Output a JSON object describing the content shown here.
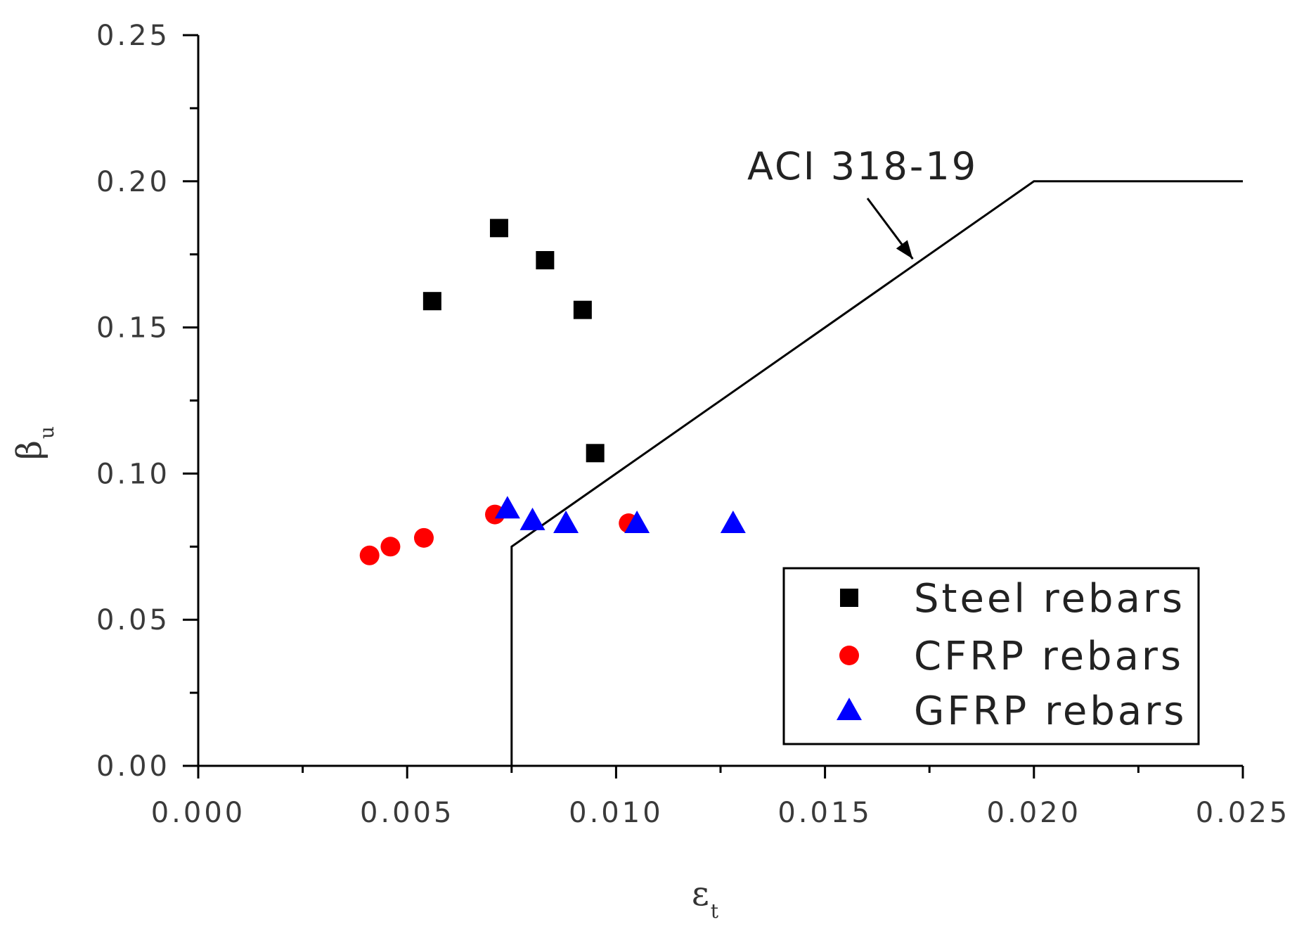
{
  "chart_data": {
    "type": "scatter",
    "title": "",
    "xlabel": "ε",
    "xlabel_sub": "t",
    "ylabel": "β",
    "ylabel_sub": "u",
    "xlim": [
      0,
      0.025
    ],
    "ylim": [
      0,
      0.25
    ],
    "x_ticks": [
      {
        "value": 0.0,
        "label": "0.000"
      },
      {
        "value": 0.005,
        "label": "0.005"
      },
      {
        "value": 0.01,
        "label": "0.010"
      },
      {
        "value": 0.015,
        "label": "0.015"
      },
      {
        "value": 0.02,
        "label": "0.020"
      },
      {
        "value": 0.025,
        "label": "0.025"
      }
    ],
    "y_ticks": [
      {
        "value": 0.0,
        "label": "0.00"
      },
      {
        "value": 0.05,
        "label": "0.05"
      },
      {
        "value": 0.1,
        "label": "0.10"
      },
      {
        "value": 0.15,
        "label": "0.15"
      },
      {
        "value": 0.2,
        "label": "0.20"
      },
      {
        "value": 0.25,
        "label": "0.25"
      }
    ],
    "x_minor_step": 0.0025,
    "y_minor_step": 0.025,
    "grid": false,
    "legend_position": "bottom-right",
    "series": [
      {
        "name": "Steel rebars",
        "marker": "square",
        "color": "#000000",
        "points": [
          [
            0.0056,
            0.159
          ],
          [
            0.0072,
            0.184
          ],
          [
            0.0083,
            0.173
          ],
          [
            0.0092,
            0.156
          ],
          [
            0.0095,
            0.107
          ]
        ]
      },
      {
        "name": "CFRP rebars",
        "marker": "circle",
        "color": "#ff0000",
        "points": [
          [
            0.0041,
            0.072
          ],
          [
            0.0046,
            0.075
          ],
          [
            0.0054,
            0.078
          ],
          [
            0.0071,
            0.086
          ],
          [
            0.0103,
            0.083
          ]
        ]
      },
      {
        "name": "GFRP rebars",
        "marker": "triangle",
        "color": "#0000ff",
        "points": [
          [
            0.0074,
            0.088
          ],
          [
            0.008,
            0.084
          ],
          [
            0.0088,
            0.083
          ],
          [
            0.0105,
            0.083
          ],
          [
            0.0128,
            0.083
          ]
        ]
      }
    ],
    "reference_line": {
      "name": "ACI 318-19",
      "color": "#000000",
      "points": [
        [
          0.0075,
          0.0
        ],
        [
          0.0075,
          0.075
        ],
        [
          0.02,
          0.2
        ],
        [
          0.025,
          0.2
        ]
      ]
    },
    "annotations": [
      {
        "text": "ACI 318-19",
        "points_to": [
          0.0171,
          0.172
        ]
      }
    ]
  }
}
